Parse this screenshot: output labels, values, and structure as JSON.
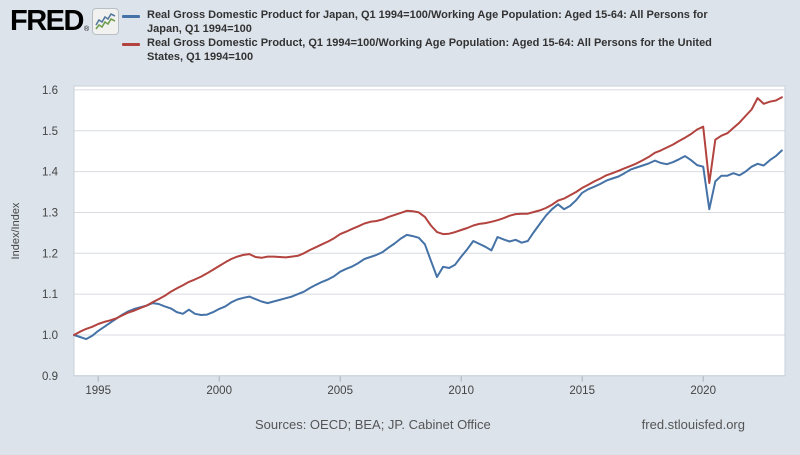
{
  "header": {
    "logo_text": "FRED",
    "registered_mark": "®"
  },
  "legend": [
    {
      "color": "#4572a7",
      "lines": [
        "Real Gross Domestic Product for Japan, Q1 1994=100/Working Age Population: Aged 15-64: All Persons for",
        "Japan, Q1 1994=100"
      ]
    },
    {
      "color": "#b2433f",
      "lines": [
        "Real Gross Domestic Product, Q1 1994=100/Working Age Population: Aged 15-64: All Persons for the United",
        "States, Q1 1994=100"
      ]
    }
  ],
  "footer": {
    "sources": "Sources: OECD; BEA; JP. Cabinet Office",
    "site": "fred.stlouisfed.org"
  },
  "chart_data": {
    "type": "line",
    "title": "",
    "xlabel": "",
    "ylabel": "Index/Index",
    "grid": true,
    "legend_position": "top",
    "x_start": 1994.0,
    "x_step": 0.25,
    "xlim": [
      1994.0,
      2023.4
    ],
    "ylim": [
      0.903,
      1.61
    ],
    "x_ticks": [
      1995,
      2000,
      2005,
      2010,
      2015,
      2020
    ],
    "y_ticks": [
      0.9,
      1.0,
      1.1,
      1.2,
      1.3,
      1.4,
      1.5,
      1.6
    ],
    "series": [
      {
        "name": "Real Gross Domestic Product for Japan, Q1 1994=100/Working Age Population: Aged 15-64: All Persons for Japan, Q1 1994=100",
        "color": "#4572a7",
        "values": [
          1.0,
          0.995,
          0.99,
          0.998,
          1.01,
          1.02,
          1.03,
          1.04,
          1.05,
          1.058,
          1.064,
          1.068,
          1.072,
          1.078,
          1.076,
          1.07,
          1.065,
          1.056,
          1.052,
          1.062,
          1.052,
          1.049,
          1.05,
          1.056,
          1.064,
          1.07,
          1.08,
          1.087,
          1.091,
          1.094,
          1.088,
          1.082,
          1.078,
          1.082,
          1.086,
          1.09,
          1.094,
          1.1,
          1.106,
          1.115,
          1.123,
          1.13,
          1.136,
          1.144,
          1.155,
          1.162,
          1.168,
          1.176,
          1.186,
          1.191,
          1.196,
          1.203,
          1.214,
          1.224,
          1.236,
          1.245,
          1.242,
          1.238,
          1.222,
          1.182,
          1.142,
          1.167,
          1.164,
          1.172,
          1.192,
          1.21,
          1.23,
          1.223,
          1.216,
          1.207,
          1.24,
          1.234,
          1.229,
          1.233,
          1.226,
          1.23,
          1.252,
          1.272,
          1.292,
          1.308,
          1.32,
          1.308,
          1.316,
          1.33,
          1.348,
          1.357,
          1.363,
          1.37,
          1.378,
          1.383,
          1.388,
          1.396,
          1.405,
          1.41,
          1.415,
          1.42,
          1.427,
          1.421,
          1.418,
          1.423,
          1.43,
          1.438,
          1.428,
          1.416,
          1.412,
          1.308,
          1.376,
          1.39,
          1.39,
          1.396,
          1.391,
          1.4,
          1.412,
          1.419,
          1.415,
          1.428,
          1.438,
          1.452
        ]
      },
      {
        "name": "Real Gross Domestic Product, Q1 1994=100/Working Age Population: Aged 15-64: All Persons for the United States, Q1 1994=100",
        "color": "#b2433f",
        "values": [
          1.0,
          1.008,
          1.015,
          1.02,
          1.027,
          1.032,
          1.036,
          1.041,
          1.048,
          1.055,
          1.06,
          1.066,
          1.072,
          1.08,
          1.088,
          1.096,
          1.106,
          1.114,
          1.122,
          1.13,
          1.136,
          1.143,
          1.151,
          1.16,
          1.169,
          1.178,
          1.186,
          1.192,
          1.196,
          1.198,
          1.191,
          1.189,
          1.192,
          1.192,
          1.191,
          1.19,
          1.192,
          1.194,
          1.2,
          1.208,
          1.215,
          1.222,
          1.229,
          1.237,
          1.247,
          1.253,
          1.26,
          1.266,
          1.273,
          1.277,
          1.279,
          1.283,
          1.289,
          1.294,
          1.299,
          1.304,
          1.303,
          1.3,
          1.289,
          1.268,
          1.252,
          1.247,
          1.248,
          1.252,
          1.257,
          1.262,
          1.268,
          1.272,
          1.274,
          1.277,
          1.281,
          1.286,
          1.292,
          1.296,
          1.297,
          1.297,
          1.301,
          1.305,
          1.311,
          1.319,
          1.329,
          1.334,
          1.342,
          1.35,
          1.36,
          1.368,
          1.376,
          1.383,
          1.391,
          1.396,
          1.402,
          1.408,
          1.414,
          1.42,
          1.428,
          1.436,
          1.446,
          1.452,
          1.459,
          1.466,
          1.475,
          1.483,
          1.492,
          1.503,
          1.51,
          1.372,
          1.478,
          1.488,
          1.494,
          1.507,
          1.52,
          1.536,
          1.552,
          1.58,
          1.566,
          1.571,
          1.574,
          1.582
        ]
      }
    ]
  }
}
